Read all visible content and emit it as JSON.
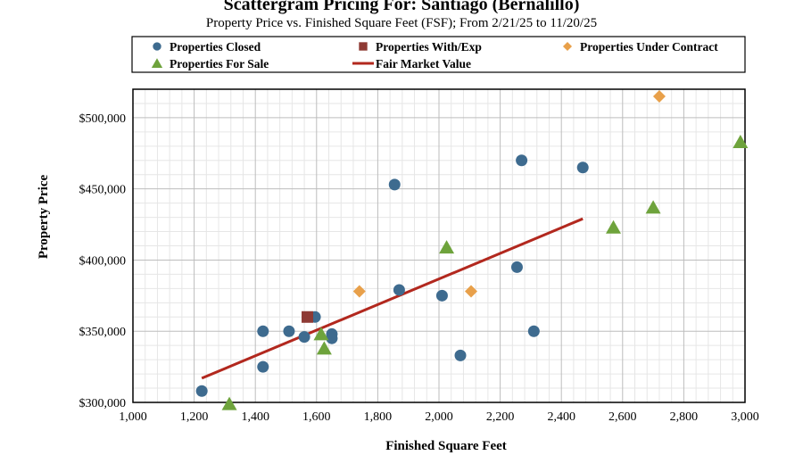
{
  "colors": {
    "closed": "#3e6b8f",
    "with_exp": "#8e3a34",
    "under_contract": "#e8a04a",
    "for_sale": "#6ea33c",
    "fair_market": "#b2281e"
  },
  "chart_data": {
    "type": "scatter",
    "title": "Scattergram Pricing For: Santiago (Bernalillo)",
    "subtitle": "Property Price vs. Finished Square Feet (FSF); From 2/21/25 to 11/20/25",
    "xlabel": "Finished Square Feet",
    "ylabel": "Property Price",
    "xlim": [
      1000,
      3000
    ],
    "ylim": [
      300000,
      520000
    ],
    "x_ticks": [
      1000,
      1200,
      1400,
      1600,
      1800,
      2000,
      2200,
      2400,
      2600,
      2800,
      3000
    ],
    "x_tick_labels": [
      "1,000",
      "1,200",
      "1,400",
      "1,600",
      "1,800",
      "2,000",
      "2,200",
      "2,400",
      "2,600",
      "2,800",
      "3,000"
    ],
    "y_ticks": [
      300000,
      350000,
      400000,
      450000,
      500000
    ],
    "y_tick_labels": [
      "$300,000",
      "$350,000",
      "$400,000",
      "$450,000",
      "$500,000"
    ],
    "legend_position": "top",
    "series": [
      {
        "name": "Properties Closed",
        "marker": "circle",
        "color_key": "closed",
        "points": [
          {
            "x": 1225,
            "y": 308000
          },
          {
            "x": 1425,
            "y": 350000
          },
          {
            "x": 1425,
            "y": 325000
          },
          {
            "x": 1510,
            "y": 350000
          },
          {
            "x": 1560,
            "y": 346000
          },
          {
            "x": 1595,
            "y": 360000
          },
          {
            "x": 1650,
            "y": 348000
          },
          {
            "x": 1650,
            "y": 345000
          },
          {
            "x": 1855,
            "y": 453000
          },
          {
            "x": 1870,
            "y": 379000
          },
          {
            "x": 2010,
            "y": 375000
          },
          {
            "x": 2070,
            "y": 333000
          },
          {
            "x": 2255,
            "y": 395000
          },
          {
            "x": 2270,
            "y": 470000
          },
          {
            "x": 2310,
            "y": 350000
          },
          {
            "x": 2470,
            "y": 465000
          }
        ]
      },
      {
        "name": "Properties With/Exp",
        "marker": "square",
        "color_key": "with_exp",
        "points": [
          {
            "x": 1570,
            "y": 360000
          }
        ]
      },
      {
        "name": "Properties Under Contract",
        "marker": "diamond",
        "color_key": "under_contract",
        "points": [
          {
            "x": 1740,
            "y": 378000
          },
          {
            "x": 2105,
            "y": 378000
          },
          {
            "x": 2720,
            "y": 515000
          }
        ]
      },
      {
        "name": "Properties For Sale",
        "marker": "triangle",
        "color_key": "for_sale",
        "points": [
          {
            "x": 1315,
            "y": 299000
          },
          {
            "x": 1615,
            "y": 348000
          },
          {
            "x": 1625,
            "y": 338000
          },
          {
            "x": 2025,
            "y": 409000
          },
          {
            "x": 2570,
            "y": 423000
          },
          {
            "x": 2700,
            "y": 437000
          },
          {
            "x": 2985,
            "y": 483000
          }
        ]
      },
      {
        "name": "Fair Market Value",
        "marker": "line",
        "color_key": "fair_market",
        "points": [
          {
            "x": 1225,
            "y": 317000
          },
          {
            "x": 2470,
            "y": 429000
          }
        ]
      }
    ]
  }
}
